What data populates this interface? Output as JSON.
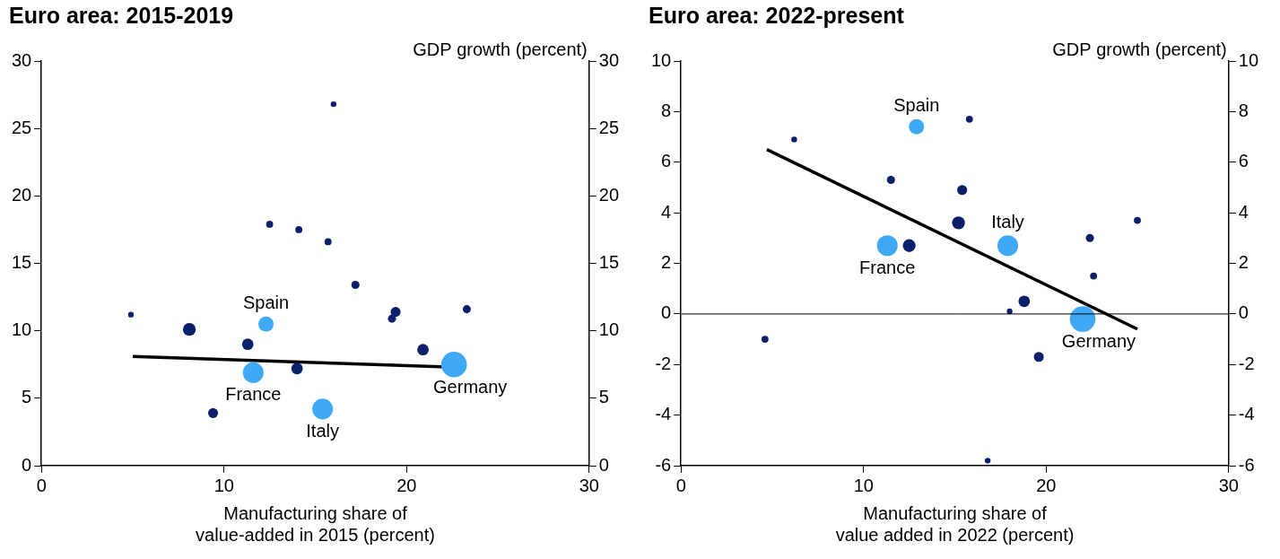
{
  "chart_data": [
    {
      "type": "bubble",
      "title": "Euro area: 2015-2019",
      "y_label": "GDP growth (percent)",
      "x_label": [
        "Manufacturing share of",
        "value-added in 2015 (percent)"
      ],
      "x": [
        4.9,
        8.1,
        9.4,
        11.3,
        11.6,
        12.3,
        12.5,
        14.1,
        14.0,
        15.4,
        15.7,
        16.0,
        17.2,
        19.2,
        19.4,
        20.9,
        22.6,
        23.3
      ],
      "values": [
        11.2,
        10.1,
        3.9,
        9.0,
        6.9,
        10.5,
        17.9,
        17.5,
        7.2,
        4.2,
        16.6,
        26.8,
        13.4,
        10.9,
        11.4,
        8.6,
        7.5,
        11.6
      ],
      "sizes": [
        1,
        5,
        3,
        4,
        13,
        7,
        1.5,
        1.5,
        4,
        13,
        1.5,
        1,
        2,
        2,
        3,
        4,
        20,
        2
      ],
      "colors": [
        "#0b1f6b",
        "#0b1f6b",
        "#0b1f6b",
        "#0b1f6b",
        "#3fa9f5",
        "#3fa9f5",
        "#0b1f6b",
        "#0b1f6b",
        "#0b1f6b",
        "#3fa9f5",
        "#0b1f6b",
        "#0b1f6b",
        "#0b1f6b",
        "#0b1f6b",
        "#0b1f6b",
        "#0b1f6b",
        "#3fa9f5",
        "#0b1f6b"
      ],
      "point_labels": [
        null,
        null,
        null,
        null,
        "France",
        "Spain",
        null,
        null,
        null,
        "Italy",
        null,
        null,
        null,
        null,
        null,
        null,
        "Germany",
        null
      ],
      "fit_line": {
        "x": [
          5,
          22.6
        ],
        "values": [
          8.1,
          7.3
        ],
        "color": "#000000"
      },
      "xlim": [
        0,
        30
      ],
      "xticks": [
        0,
        10,
        20,
        30
      ],
      "ylim": [
        0,
        30
      ],
      "yticks": [
        0,
        5,
        10,
        15,
        20,
        25,
        30
      ],
      "grid": false
    },
    {
      "type": "bubble",
      "title": "Euro area: 2022-present",
      "y_label": "GDP growth (percent)",
      "x_label": [
        "Manufacturing share of",
        "value added in 2022 (percent)"
      ],
      "x": [
        4.6,
        6.2,
        11.5,
        11.3,
        12.5,
        12.9,
        15.8,
        15.4,
        15.2,
        17.9,
        16.8,
        18.0,
        18.8,
        19.6,
        22.0,
        22.4,
        22.6,
        25.0
      ],
      "values": [
        -1.0,
        6.9,
        5.3,
        2.7,
        2.7,
        7.4,
        7.7,
        4.9,
        3.6,
        2.7,
        -5.8,
        0.1,
        0.5,
        -1.7,
        -0.2,
        3.0,
        1.5,
        3.7
      ],
      "sizes": [
        1.5,
        1,
        2,
        13,
        5,
        7,
        1.5,
        3,
        5,
        13,
        1,
        1,
        4,
        3,
        20,
        2,
        1.5,
        1.5
      ],
      "colors": [
        "#0b1f6b",
        "#0b1f6b",
        "#0b1f6b",
        "#3fa9f5",
        "#0b1f6b",
        "#3fa9f5",
        "#0b1f6b",
        "#0b1f6b",
        "#0b1f6b",
        "#3fa9f5",
        "#0b1f6b",
        "#0b1f6b",
        "#0b1f6b",
        "#0b1f6b",
        "#3fa9f5",
        "#0b1f6b",
        "#0b1f6b",
        "#0b1f6b"
      ],
      "point_labels": [
        null,
        null,
        null,
        "France",
        null,
        "Spain",
        null,
        null,
        null,
        "Italy",
        null,
        null,
        null,
        null,
        "Germany",
        null,
        null,
        null
      ],
      "fit_line": {
        "x": [
          4.7,
          25.0
        ],
        "values": [
          6.5,
          -0.6
        ],
        "color": "#000000"
      },
      "hlines": [
        0
      ],
      "xlim": [
        0,
        30
      ],
      "xticks": [
        0,
        10,
        20,
        30
      ],
      "ylim": [
        -6,
        10
      ],
      "yticks": [
        -6,
        -4,
        -2,
        0,
        2,
        4,
        6,
        8,
        10
      ],
      "grid": false
    }
  ]
}
